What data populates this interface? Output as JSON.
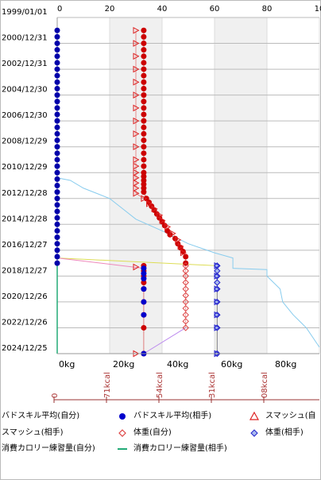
{
  "chart_data": {
    "type": "line",
    "x_top_ticks": [
      "0",
      "20",
      "40",
      "60",
      "80",
      "10"
    ],
    "x_bottom_ticks": [
      "0kg",
      "20kg",
      "40kg",
      "60kg",
      "80kg"
    ],
    "kcal_ticks": [
      "0",
      "71kcal",
      "54kcal",
      "31kcal",
      "08kcal"
    ],
    "y_tick_labels": [
      "1999/01/01",
      "2000/12/31",
      "2002/12/31",
      "2004/12/30",
      "2006/12/30",
      "2008/12/29",
      "2010/12/29",
      "2012/12/28",
      "2014/12/28",
      "2016/12/27",
      "2018/12/27",
      "2020/12/26",
      "2022/12/26",
      "2024/12/25"
    ],
    "y_tick_years": [
      1999.0,
      2001.0,
      2003.0,
      2005.0,
      2007.0,
      2009.0,
      2011.0,
      2013.0,
      2015.0,
      2017.0,
      2019.0,
      2021.0,
      2023.0,
      2025.0
    ],
    "ylim": [
      1999.0,
      2025.0
    ],
    "xlim": [
      0,
      100
    ],
    "shaded_bands": [
      [
        20,
        40
      ],
      [
        60,
        80
      ]
    ],
    "series": [
      {
        "name": "バドスキル平均(自分)",
        "color": "#0000aa",
        "marker": "dot",
        "points": [
          [
            0,
            2000.0
          ],
          [
            0,
            2000.5
          ],
          [
            0,
            2001.0
          ],
          [
            0,
            2001.5
          ],
          [
            0,
            2002.0
          ],
          [
            0,
            2002.5
          ],
          [
            0,
            2003.0
          ],
          [
            0,
            2003.5
          ],
          [
            0,
            2004.0
          ],
          [
            0,
            2004.5
          ],
          [
            0,
            2005.0
          ],
          [
            0,
            2005.5
          ],
          [
            0,
            2006.0
          ],
          [
            0,
            2006.5
          ],
          [
            0,
            2007.0
          ],
          [
            0,
            2007.5
          ],
          [
            0,
            2008.0
          ],
          [
            0,
            2008.5
          ],
          [
            0,
            2009.0
          ],
          [
            0,
            2009.5
          ],
          [
            0,
            2010.0
          ],
          [
            0,
            2010.5
          ],
          [
            0,
            2011.0
          ],
          [
            0,
            2011.5
          ],
          [
            0,
            2012.0
          ],
          [
            0,
            2012.5
          ],
          [
            0,
            2013.0
          ],
          [
            0,
            2013.5
          ],
          [
            0,
            2014.0
          ],
          [
            0,
            2014.5
          ],
          [
            0,
            2015.0
          ],
          [
            0,
            2015.5
          ],
          [
            0,
            2016.0
          ],
          [
            0,
            2016.5
          ],
          [
            0,
            2017.0
          ],
          [
            0,
            2017.5
          ],
          [
            0,
            2018.0
          ]
        ]
      },
      {
        "name": "バドスキル平均(相手)",
        "color": "#cc0000",
        "marker": "dot",
        "points": [
          [
            33,
            2000.0
          ],
          [
            33,
            2000.5
          ],
          [
            33,
            2001.0
          ],
          [
            33,
            2001.5
          ],
          [
            33,
            2002.0
          ],
          [
            33,
            2002.5
          ],
          [
            33,
            2003.0
          ],
          [
            33,
            2003.5
          ],
          [
            33,
            2004.0
          ],
          [
            33,
            2004.5
          ],
          [
            33,
            2005.0
          ],
          [
            33,
            2005.5
          ],
          [
            33,
            2006.0
          ],
          [
            33,
            2006.5
          ],
          [
            33,
            2007.0
          ],
          [
            33,
            2007.5
          ],
          [
            33,
            2008.0
          ],
          [
            33,
            2008.5
          ],
          [
            33,
            2009.0
          ],
          [
            33,
            2009.5
          ],
          [
            33,
            2010.0
          ],
          [
            33,
            2010.5
          ],
          [
            33,
            2011.0
          ],
          [
            33,
            2011.3
          ],
          [
            33,
            2011.6
          ],
          [
            33,
            2011.9
          ],
          [
            33,
            2012.2
          ],
          [
            33,
            2012.5
          ],
          [
            34,
            2013.0
          ],
          [
            35,
            2013.3
          ],
          [
            36,
            2013.6
          ],
          [
            37,
            2013.9
          ],
          [
            38,
            2014.2
          ],
          [
            39,
            2014.5
          ],
          [
            40,
            2014.8
          ],
          [
            41,
            2015.1
          ],
          [
            42,
            2015.5
          ],
          [
            43,
            2015.8
          ],
          [
            45,
            2016.1
          ],
          [
            46,
            2016.5
          ],
          [
            47,
            2016.8
          ],
          [
            48,
            2017.1
          ],
          [
            49,
            2017.5
          ],
          [
            49,
            2018.0
          ]
        ]
      },
      {
        "name": "スマッシュ(自分)",
        "color": "#dd2222",
        "marker": "triangle",
        "points": [
          [
            30,
            2000.0
          ],
          [
            30,
            2001.0
          ],
          [
            30,
            2002.0
          ],
          [
            30,
            2003.0
          ],
          [
            30,
            2004.0
          ],
          [
            30,
            2005.0
          ],
          [
            30,
            2006.0
          ],
          [
            30,
            2007.0
          ],
          [
            30,
            2008.0
          ],
          [
            30,
            2009.0
          ],
          [
            30,
            2010.0
          ],
          [
            30,
            2010.5
          ],
          [
            30,
            2011.0
          ],
          [
            30,
            2011.4
          ],
          [
            30,
            2011.8
          ],
          [
            30,
            2012.2
          ],
          [
            30,
            2012.6
          ],
          [
            33,
            2013.0
          ],
          [
            35,
            2013.4
          ],
          [
            37,
            2013.8
          ],
          [
            39,
            2014.3
          ],
          [
            40,
            2014.7
          ],
          [
            42,
            2015.2
          ],
          [
            44,
            2015.7
          ],
          [
            46,
            2016.2
          ],
          [
            47,
            2016.7
          ],
          [
            48,
            2017.2
          ]
        ]
      },
      {
        "name": "スマッシュ(相手)",
        "color": "#dd4444",
        "marker": "diamond-open",
        "points": [
          [
            49,
            2018.2
          ],
          [
            49,
            2018.6
          ],
          [
            49,
            2019.0
          ],
          [
            49,
            2019.5
          ],
          [
            49,
            2020.0
          ],
          [
            49,
            2020.5
          ],
          [
            49,
            2021.0
          ],
          [
            49,
            2021.5
          ],
          [
            49,
            2022.0
          ],
          [
            49,
            2022.5
          ],
          [
            49,
            2023.0
          ]
        ]
      },
      {
        "name": "体重(自分)",
        "color": "#cc0000",
        "marker": "dot",
        "points": [
          [
            33,
            2018.2
          ],
          [
            33,
            2018.6
          ],
          [
            33,
            2019.0
          ],
          [
            33,
            2019.5
          ],
          [
            33,
            2020.0
          ],
          [
            33,
            2021.0
          ],
          [
            33,
            2022.0
          ],
          [
            33,
            2023.0
          ],
          [
            33,
            2025.0
          ]
        ]
      },
      {
        "name": "体重(相手)",
        "color": "#2222cc",
        "marker": "diamond",
        "points": [
          [
            61,
            2018.2
          ],
          [
            61,
            2018.6
          ],
          [
            61,
            2019.0
          ],
          [
            61,
            2019.5
          ],
          [
            61,
            2020.0
          ],
          [
            61,
            2021.0
          ],
          [
            61,
            2022.0
          ],
          [
            61,
            2023.0
          ],
          [
            61,
            2025.0
          ]
        ]
      }
    ],
    "triangles_blue": [
      [
        60,
        2018.2
      ],
      [
        60,
        2019.0
      ],
      [
        60,
        2020.0
      ],
      [
        60,
        2021.0
      ],
      [
        60,
        2022.0
      ],
      [
        60,
        2023.0
      ],
      [
        60,
        2025.0
      ]
    ],
    "triangles_red_low": [
      [
        30,
        2018.3
      ],
      [
        30,
        2025.0
      ]
    ],
    "blue_points_lower": [
      [
        33,
        2018.4
      ],
      [
        33,
        2018.8
      ],
      [
        33,
        2019.2
      ],
      [
        33,
        2020.0
      ],
      [
        33,
        2021.0
      ],
      [
        33,
        2022.0
      ],
      [
        33,
        2025.0
      ]
    ],
    "calorie_line": {
      "color": "#88ccee",
      "points": [
        [
          0,
          2011.4
        ],
        [
          5,
          2011.6
        ],
        [
          10,
          2012.2
        ],
        [
          15,
          2012.6
        ],
        [
          20,
          2013.0
        ],
        [
          25,
          2013.8
        ],
        [
          30,
          2014.6
        ],
        [
          40,
          2015.5
        ],
        [
          50,
          2016.5
        ],
        [
          60,
          2017.2
        ],
        [
          67,
          2017.6
        ],
        [
          67,
          2018.4
        ],
        [
          80,
          2018.5
        ],
        [
          80,
          2019.0
        ],
        [
          85,
          2020.0
        ],
        [
          86,
          2021.0
        ],
        [
          90,
          2022.0
        ],
        [
          95,
          2023.0
        ],
        [
          100,
          2024.5
        ]
      ]
    },
    "cross_lines": [
      {
        "color": "#dddd55",
        "points": [
          [
            0,
            2017.6
          ],
          [
            61,
            2018.2
          ]
        ]
      },
      {
        "color": "#ee88bb",
        "points": [
          [
            0,
            2017.6
          ],
          [
            33,
            2018.4
          ]
        ]
      },
      {
        "color": "#bb88ee",
        "points": [
          [
            33,
            2025.0
          ],
          [
            49,
            2023.0
          ]
        ]
      },
      {
        "color": "#dddd55",
        "points": [
          [
            61,
            2018.2
          ],
          [
            61,
            2025.0
          ]
        ]
      }
    ],
    "green_line": {
      "color": "#22aa77",
      "points": [
        [
          0,
          2018.0
        ],
        [
          0,
          2025.0
        ]
      ]
    }
  },
  "legend": {
    "row1": [
      "バドスキル平均(自分)",
      "バドスキル平均(相手)",
      "スマッシュ(自"
    ],
    "row2": [
      "スマッシュ(相手)",
      "体重(自分)",
      "体重(相手)"
    ],
    "row3": [
      "消費カロリー練習量(自分)",
      "消費カロリー練習量(相手)"
    ]
  }
}
